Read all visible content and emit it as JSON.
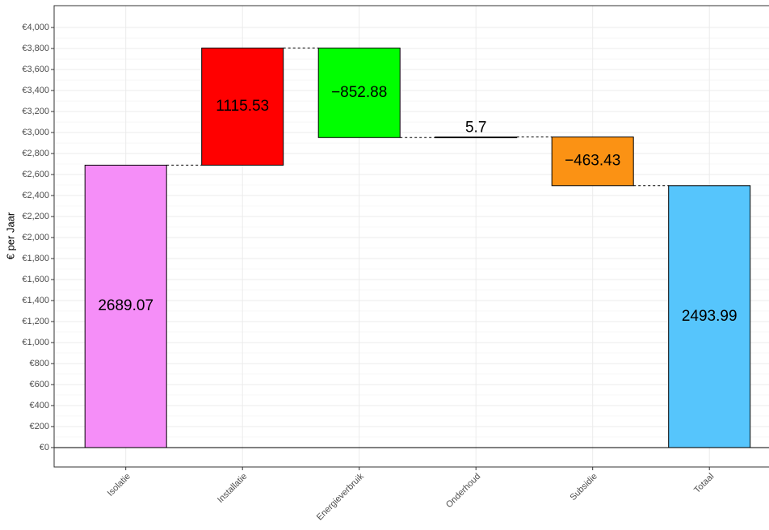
{
  "chart_data": {
    "type": "waterfall",
    "y_label": "€ per Jaar",
    "categories": [
      "Isolatie",
      "Installatie",
      "Energieverbruik",
      "Onderhoud",
      "Subsidie",
      "Totaal"
    ],
    "values": [
      2689.07,
      1115.53,
      -852.88,
      5.7,
      -463.43,
      2493.99
    ],
    "value_labels": [
      "2689.07",
      "1115.53",
      "−852.88",
      "5.7",
      "−463.43",
      "2493.99"
    ],
    "measure": [
      "relative",
      "relative",
      "relative",
      "relative",
      "relative",
      "total"
    ],
    "colors": [
      "#f58ef8",
      "#ff0000",
      "#00ff00",
      "#000000",
      "#fb9214",
      "#56c5fc"
    ],
    "ylim": [
      -185,
      4208
    ],
    "yticks": [
      {
        "value": 0,
        "label": "€0"
      },
      {
        "value": 200,
        "label": "€200"
      },
      {
        "value": 400,
        "label": "€400"
      },
      {
        "value": 600,
        "label": "€600"
      },
      {
        "value": 800,
        "label": "€800"
      },
      {
        "value": 1000,
        "label": "€1,000"
      },
      {
        "value": 1200,
        "label": "€1,200"
      },
      {
        "value": 1400,
        "label": "€1,400"
      },
      {
        "value": 1600,
        "label": "€1,600"
      },
      {
        "value": 1800,
        "label": "€1,800"
      },
      {
        "value": 2000,
        "label": "€2,000"
      },
      {
        "value": 2200,
        "label": "€2,200"
      },
      {
        "value": 2400,
        "label": "€2,400"
      },
      {
        "value": 2600,
        "label": "€2,600"
      },
      {
        "value": 2800,
        "label": "€2,800"
      },
      {
        "value": 3000,
        "label": "€3,000"
      },
      {
        "value": 3200,
        "label": "€3,200"
      },
      {
        "value": 3400,
        "label": "€3,400"
      },
      {
        "value": 3600,
        "label": "€3,600"
      },
      {
        "value": 3800,
        "label": "€3,800"
      },
      {
        "value": 4000,
        "label": "€4,000"
      }
    ],
    "grid": true
  }
}
